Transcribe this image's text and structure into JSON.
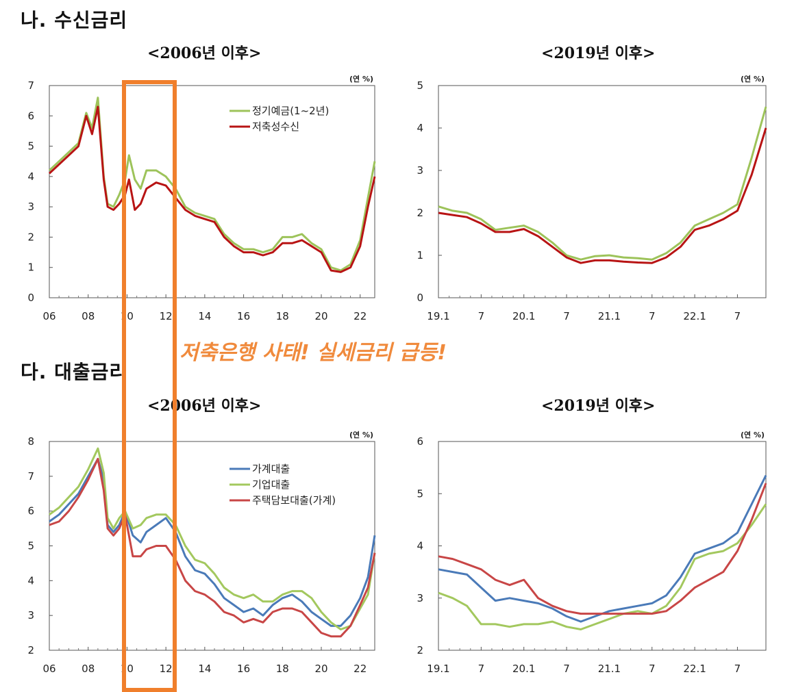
{
  "sections": {
    "deposit": "나. 수신금리",
    "loan": "다. 대출금리"
  },
  "annotation": "저축은행 사태! 실세금리 급등!",
  "colors": {
    "green": "#9dc35a",
    "red": "#b81414",
    "blue": "#4a7ab8",
    "loan_green": "#a3c85e",
    "loan_red": "#c84646",
    "highlight": "#f07f2c"
  },
  "chart_data": [
    {
      "id": "deposit_long",
      "type": "line",
      "title": "<2006년 이후>",
      "unit": "(연 %)",
      "ylim": [
        0,
        7
      ],
      "yticks": [
        "0",
        "1",
        "2",
        "3",
        "4",
        "5",
        "6",
        "7"
      ],
      "xlim": [
        2006,
        2022.75
      ],
      "xtick_values": [
        2006,
        2008,
        2010,
        2012,
        2014,
        2016,
        2018,
        2020,
        2022
      ],
      "xtick_labels": [
        "06",
        "08",
        "10",
        "12",
        "14",
        "16",
        "18",
        "20",
        "22"
      ],
      "legend_position": "top-right",
      "series": [
        {
          "name": "정기예금(1~2년)",
          "color": "#9dc35a",
          "x": [
            2006,
            2006.5,
            2007,
            2007.5,
            2007.9,
            2008.2,
            2008.5,
            2008.8,
            2009,
            2009.3,
            2009.6,
            2009.9,
            2010.1,
            2010.4,
            2010.7,
            2011,
            2011.5,
            2012,
            2012.5,
            2013,
            2013.5,
            2014,
            2014.5,
            2015,
            2015.5,
            2016,
            2016.5,
            2017,
            2017.5,
            2018,
            2018.5,
            2019,
            2019.5,
            2020,
            2020.5,
            2021,
            2021.5,
            2022,
            2022.4,
            2022.75
          ],
          "y": [
            4.2,
            4.5,
            4.8,
            5.1,
            6.1,
            5.6,
            6.6,
            4.0,
            3.1,
            3.0,
            3.4,
            3.9,
            4.7,
            3.9,
            3.6,
            4.2,
            4.2,
            4.0,
            3.6,
            3.0,
            2.8,
            2.7,
            2.6,
            2.1,
            1.8,
            1.6,
            1.6,
            1.5,
            1.6,
            2.0,
            2.0,
            2.1,
            1.8,
            1.6,
            1.0,
            0.9,
            1.1,
            1.9,
            3.3,
            4.5
          ]
        },
        {
          "name": "저축성수신",
          "color": "#b81414",
          "x": [
            2006,
            2006.5,
            2007,
            2007.5,
            2007.9,
            2008.2,
            2008.5,
            2008.8,
            2009,
            2009.3,
            2009.6,
            2009.9,
            2010.1,
            2010.4,
            2010.7,
            2011,
            2011.5,
            2012,
            2012.5,
            2013,
            2013.5,
            2014,
            2014.5,
            2015,
            2015.5,
            2016,
            2016.5,
            2017,
            2017.5,
            2018,
            2018.5,
            2019,
            2019.5,
            2020,
            2020.5,
            2021,
            2021.5,
            2022,
            2022.4,
            2022.75
          ],
          "y": [
            4.1,
            4.4,
            4.7,
            5.0,
            6.0,
            5.4,
            6.3,
            3.9,
            3.0,
            2.9,
            3.1,
            3.4,
            3.9,
            2.9,
            3.1,
            3.6,
            3.8,
            3.7,
            3.3,
            2.9,
            2.7,
            2.6,
            2.5,
            2.0,
            1.7,
            1.5,
            1.5,
            1.4,
            1.5,
            1.8,
            1.8,
            1.9,
            1.7,
            1.5,
            0.9,
            0.85,
            1.0,
            1.7,
            3.0,
            4.0
          ]
        }
      ]
    },
    {
      "id": "deposit_recent",
      "type": "line",
      "title": "<2019년 이후>",
      "unit": "(연 %)",
      "ylim": [
        0,
        5
      ],
      "yticks": [
        "0",
        "1",
        "2",
        "3",
        "4",
        "5"
      ],
      "xlim": [
        0,
        46
      ],
      "xtick_values": [
        0,
        6,
        12,
        18,
        24,
        30,
        36,
        42
      ],
      "xtick_labels": [
        "19.1",
        "7",
        "20.1",
        "7",
        "21.1",
        "7",
        "22.1",
        "7"
      ],
      "legend_position": "none",
      "series": [
        {
          "name": "정기예금(1~2년)",
          "color": "#9dc35a",
          "x": [
            0,
            2,
            4,
            6,
            8,
            10,
            12,
            14,
            16,
            18,
            20,
            22,
            24,
            26,
            28,
            30,
            32,
            34,
            36,
            38,
            40,
            42,
            44,
            46
          ],
          "y": [
            2.15,
            2.05,
            2.0,
            1.85,
            1.6,
            1.65,
            1.7,
            1.55,
            1.3,
            1.0,
            0.9,
            0.98,
            1.0,
            0.95,
            0.93,
            0.9,
            1.05,
            1.3,
            1.7,
            1.85,
            2.0,
            2.2,
            3.3,
            4.5
          ]
        },
        {
          "name": "저축성수신",
          "color": "#b81414",
          "x": [
            0,
            2,
            4,
            6,
            8,
            10,
            12,
            14,
            16,
            18,
            20,
            22,
            24,
            26,
            28,
            30,
            32,
            34,
            36,
            38,
            40,
            42,
            44,
            46
          ],
          "y": [
            2.0,
            1.95,
            1.9,
            1.75,
            1.55,
            1.55,
            1.62,
            1.45,
            1.2,
            0.95,
            0.82,
            0.88,
            0.88,
            0.85,
            0.83,
            0.82,
            0.95,
            1.2,
            1.6,
            1.7,
            1.85,
            2.05,
            2.9,
            4.0
          ]
        }
      ]
    },
    {
      "id": "loan_long",
      "type": "line",
      "title": "<2006년 이후>",
      "unit": "(연 %)",
      "ylim": [
        2,
        8
      ],
      "yticks": [
        "2",
        "3",
        "4",
        "5",
        "6",
        "7",
        "8"
      ],
      "xlim": [
        2006,
        2022.75
      ],
      "xtick_values": [
        2006,
        2008,
        2010,
        2012,
        2014,
        2016,
        2018,
        2020,
        2022
      ],
      "xtick_labels": [
        "06",
        "08",
        "10",
        "12",
        "14",
        "16",
        "18",
        "20",
        "22"
      ],
      "legend_position": "top-right",
      "series": [
        {
          "name": "가계대출",
          "color": "#4a7ab8",
          "x": [
            2006,
            2006.5,
            2007,
            2007.5,
            2008,
            2008.5,
            2008.8,
            2009,
            2009.3,
            2009.6,
            2009.9,
            2010.3,
            2010.7,
            2011,
            2011.5,
            2012,
            2012.5,
            2013,
            2013.5,
            2014,
            2014.5,
            2015,
            2015.5,
            2016,
            2016.5,
            2017,
            2017.5,
            2018,
            2018.5,
            2019,
            2019.5,
            2020,
            2020.5,
            2021,
            2021.5,
            2022,
            2022.4,
            2022.75
          ],
          "y": [
            5.7,
            5.9,
            6.2,
            6.5,
            7.0,
            7.5,
            6.9,
            5.6,
            5.4,
            5.6,
            6.0,
            5.3,
            5.1,
            5.4,
            5.6,
            5.8,
            5.4,
            4.7,
            4.3,
            4.2,
            3.9,
            3.5,
            3.3,
            3.1,
            3.2,
            3.0,
            3.3,
            3.5,
            3.6,
            3.4,
            3.1,
            2.9,
            2.7,
            2.7,
            3.0,
            3.5,
            4.1,
            5.3
          ]
        },
        {
          "name": "기업대출",
          "color": "#a3c85e",
          "x": [
            2006,
            2006.5,
            2007,
            2007.5,
            2008,
            2008.5,
            2008.8,
            2009,
            2009.3,
            2009.6,
            2009.9,
            2010.3,
            2010.7,
            2011,
            2011.5,
            2012,
            2012.5,
            2013,
            2013.5,
            2014,
            2014.5,
            2015,
            2015.5,
            2016,
            2016.5,
            2017,
            2017.5,
            2018,
            2018.5,
            2019,
            2019.5,
            2020,
            2020.5,
            2021,
            2021.5,
            2022,
            2022.4,
            2022.75
          ],
          "y": [
            5.9,
            6.1,
            6.4,
            6.7,
            7.2,
            7.8,
            7.1,
            5.8,
            5.5,
            5.8,
            6.0,
            5.5,
            5.6,
            5.8,
            5.9,
            5.9,
            5.6,
            5.0,
            4.6,
            4.5,
            4.2,
            3.8,
            3.6,
            3.5,
            3.6,
            3.4,
            3.4,
            3.6,
            3.7,
            3.7,
            3.5,
            3.1,
            2.8,
            2.6,
            2.7,
            3.2,
            3.6,
            4.8
          ]
        },
        {
          "name": "주택담보대출(가계)",
          "color": "#c84646",
          "x": [
            2006,
            2006.5,
            2007,
            2007.5,
            2008,
            2008.5,
            2008.8,
            2009,
            2009.3,
            2009.6,
            2009.9,
            2010.3,
            2010.7,
            2011,
            2011.5,
            2012,
            2012.5,
            2013,
            2013.5,
            2014,
            2014.5,
            2015,
            2015.5,
            2016,
            2016.5,
            2017,
            2017.5,
            2018,
            2018.5,
            2019,
            2019.5,
            2020,
            2020.5,
            2021,
            2021.5,
            2022,
            2022.4,
            2022.75
          ],
          "y": [
            5.6,
            5.7,
            6.0,
            6.4,
            6.9,
            7.5,
            6.6,
            5.5,
            5.3,
            5.5,
            5.9,
            4.7,
            4.7,
            4.9,
            5.0,
            5.0,
            4.6,
            4.0,
            3.7,
            3.6,
            3.4,
            3.1,
            3.0,
            2.8,
            2.9,
            2.8,
            3.1,
            3.2,
            3.2,
            3.1,
            2.8,
            2.5,
            2.4,
            2.4,
            2.7,
            3.3,
            3.8,
            4.8
          ]
        }
      ]
    },
    {
      "id": "loan_recent",
      "type": "line",
      "title": "<2019년 이후>",
      "unit": "(연 %)",
      "ylim": [
        2,
        6
      ],
      "yticks": [
        "2",
        "3",
        "4",
        "5",
        "6"
      ],
      "xlim": [
        0,
        46
      ],
      "xtick_values": [
        0,
        6,
        12,
        18,
        24,
        30,
        36,
        42
      ],
      "xtick_labels": [
        "19.1",
        "7",
        "20.1",
        "7",
        "21.1",
        "7",
        "22.1",
        "7"
      ],
      "legend_position": "none",
      "series": [
        {
          "name": "가계대출",
          "color": "#4a7ab8",
          "x": [
            0,
            2,
            4,
            6,
            8,
            10,
            12,
            14,
            16,
            18,
            20,
            22,
            24,
            26,
            28,
            30,
            32,
            34,
            36,
            38,
            40,
            42,
            44,
            46
          ],
          "y": [
            3.55,
            3.5,
            3.45,
            3.2,
            2.95,
            3.0,
            2.95,
            2.9,
            2.8,
            2.65,
            2.55,
            2.65,
            2.75,
            2.8,
            2.85,
            2.9,
            3.05,
            3.4,
            3.85,
            3.95,
            4.05,
            4.25,
            4.8,
            5.35
          ]
        },
        {
          "name": "기업대출",
          "color": "#a3c85e",
          "x": [
            0,
            2,
            4,
            6,
            8,
            10,
            12,
            14,
            16,
            18,
            20,
            22,
            24,
            26,
            28,
            30,
            32,
            34,
            36,
            38,
            40,
            42,
            44,
            46
          ],
          "y": [
            3.1,
            3.0,
            2.85,
            2.5,
            2.5,
            2.45,
            2.5,
            2.5,
            2.55,
            2.45,
            2.4,
            2.5,
            2.6,
            2.7,
            2.75,
            2.7,
            2.85,
            3.2,
            3.75,
            3.85,
            3.9,
            4.05,
            4.4,
            4.8
          ]
        },
        {
          "name": "주택담보대출(가계)",
          "color": "#c84646",
          "x": [
            0,
            2,
            4,
            6,
            8,
            10,
            12,
            14,
            16,
            18,
            20,
            22,
            24,
            26,
            28,
            30,
            32,
            34,
            36,
            38,
            40,
            42,
            44,
            46
          ],
          "y": [
            3.8,
            3.75,
            3.65,
            3.55,
            3.35,
            3.25,
            3.35,
            3.0,
            2.85,
            2.75,
            2.7,
            2.7,
            2.7,
            2.7,
            2.7,
            2.7,
            2.75,
            2.95,
            3.2,
            3.35,
            3.5,
            3.9,
            4.5,
            5.2
          ]
        }
      ]
    }
  ]
}
